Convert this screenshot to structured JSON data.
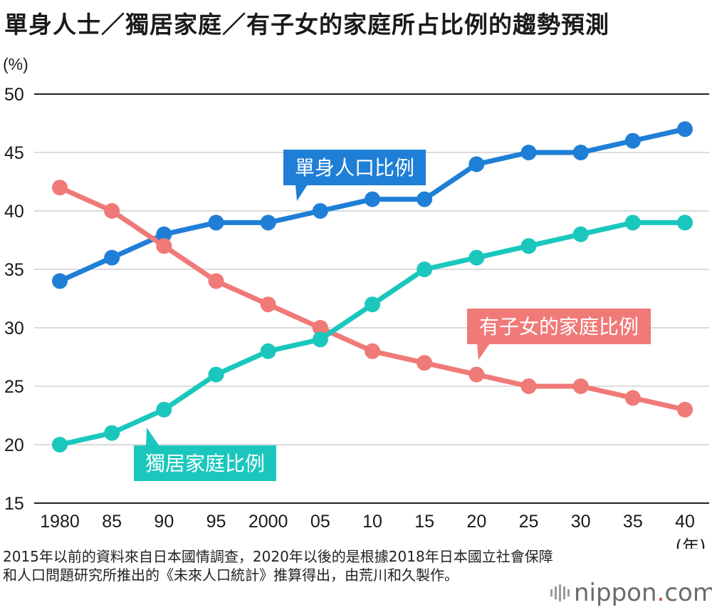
{
  "title": "單身人士／獨居家庭／有子女的家庭所占比例的趨勢預測",
  "note": "2015年以前的資料來自日本國情調查，2020年以後的是根據2018年日本國立社會保障和人口問題研究所推出的《未來人口統計》推算得出，由荒川和久製作。",
  "brand": {
    "name": "nippon",
    "dot": ".",
    "suffix": "com"
  },
  "colors": {
    "blue": "#1f7fd6",
    "red": "#f07a78",
    "teal": "#1bc7bd",
    "grid": "#cfcfcf",
    "axis": "#222222"
  },
  "chart_data": {
    "type": "line",
    "ylabel": "(%)",
    "xlabel": "(年)",
    "ylim": [
      15,
      50
    ],
    "yticks": [
      15,
      20,
      25,
      30,
      35,
      40,
      45,
      50
    ],
    "categories": [
      "1980",
      "85",
      "90",
      "95",
      "2000",
      "05",
      "10",
      "15",
      "20",
      "25",
      "30",
      "35",
      "40"
    ],
    "grid": true,
    "series": [
      {
        "name": "單身人口比例",
        "color": "#1f7fd6",
        "values": [
          34,
          36,
          38,
          39,
          39,
          40,
          41,
          41,
          44,
          45,
          45,
          46,
          47
        ]
      },
      {
        "name": "有子女的家庭比例",
        "color": "#f07a78",
        "values": [
          42,
          40,
          37,
          34,
          32,
          30,
          28,
          27,
          26,
          25,
          25,
          24,
          23
        ]
      },
      {
        "name": "獨居家庭比例",
        "color": "#1bc7bd",
        "values": [
          20,
          21,
          23,
          26,
          28,
          29,
          32,
          35,
          36,
          37,
          38,
          39,
          39
        ]
      }
    ]
  }
}
